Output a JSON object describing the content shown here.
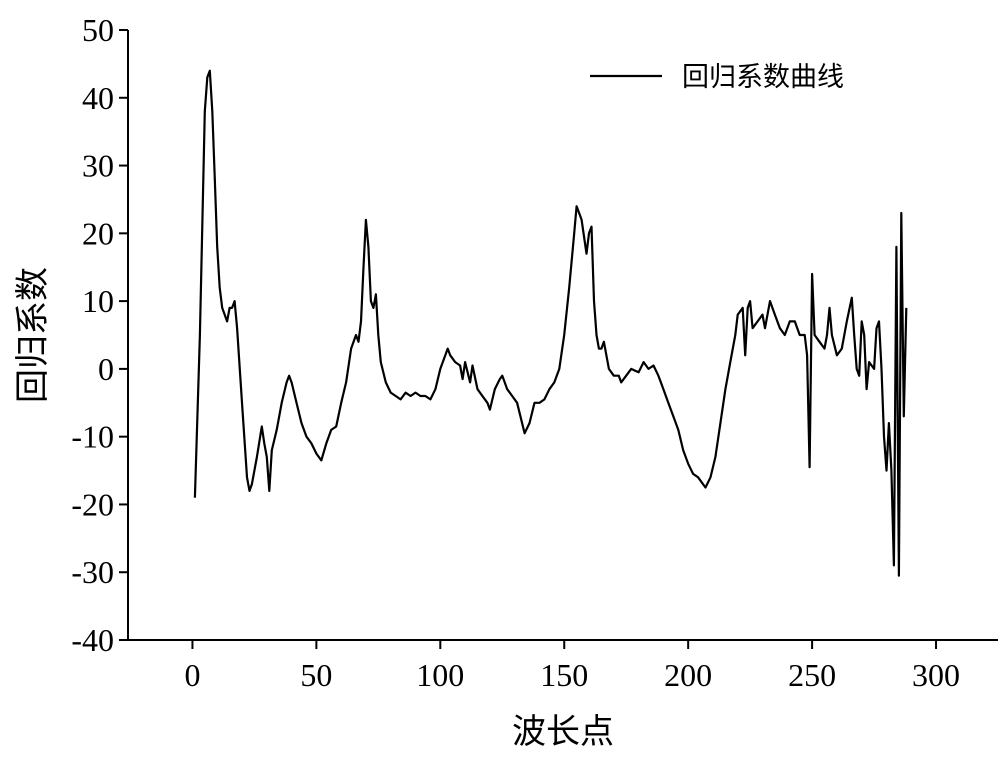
{
  "chart_data": {
    "type": "line",
    "xlabel": "波长点",
    "ylabel": "回归系数",
    "xlim": [
      -26,
      325
    ],
    "ylim": [
      -40,
      50
    ],
    "xticks": [
      0,
      50,
      100,
      150,
      200,
      250,
      300
    ],
    "yticks": [
      -40,
      -30,
      -20,
      -10,
      0,
      10,
      20,
      30,
      40,
      50
    ],
    "grid": false,
    "legend": "upper right",
    "x": [
      1,
      3,
      5,
      6,
      7,
      8,
      9,
      10,
      11,
      12,
      13,
      14,
      15,
      16,
      17,
      18,
      20,
      22,
      23,
      24,
      26,
      28,
      29,
      30,
      31,
      32,
      34,
      36,
      38,
      39,
      40,
      42,
      44,
      46,
      48,
      50,
      52,
      54,
      56,
      58,
      60,
      62,
      64,
      66,
      67,
      68,
      69,
      70,
      71,
      72,
      73,
      74,
      75,
      76,
      78,
      80,
      82,
      84,
      86,
      88,
      90,
      92,
      94,
      96,
      98,
      100,
      102,
      103,
      104,
      106,
      108,
      109,
      110,
      112,
      113,
      115,
      117,
      119,
      120,
      122,
      124,
      125,
      127,
      129,
      131,
      133,
      134,
      136,
      138,
      140,
      142,
      144,
      146,
      148,
      150,
      152,
      154,
      155,
      157,
      159,
      160,
      161,
      162,
      163,
      164,
      165,
      166,
      168,
      170,
      172,
      173,
      175,
      177,
      180,
      182,
      184,
      186,
      188,
      190,
      192,
      194,
      196,
      198,
      200,
      202,
      204,
      206,
      207,
      209,
      211,
      213,
      215,
      217,
      219,
      220,
      222,
      223,
      224,
      225,
      226,
      228,
      230,
      231,
      233,
      235,
      237,
      239,
      241,
      243,
      245,
      247,
      248,
      249,
      250,
      251,
      253,
      255,
      256,
      257,
      258,
      260,
      262,
      264,
      266,
      267,
      268,
      269,
      270,
      271,
      272,
      273,
      275,
      276,
      277,
      278,
      279,
      280,
      281,
      282,
      283,
      284,
      285,
      286,
      287,
      288
    ],
    "series": [
      {
        "name": "回归系数曲线",
        "color": "#000000",
        "values": [
          -19,
          5,
          38,
          43,
          44,
          38,
          28,
          18,
          12,
          9,
          8,
          7,
          9,
          9,
          10,
          6,
          -5,
          -16,
          -18,
          -17,
          -13,
          -8.5,
          -11,
          -13,
          -18,
          -12,
          -9,
          -5,
          -2,
          -1,
          -2,
          -5,
          -8,
          -10,
          -11,
          -12.5,
          -13.5,
          -11,
          -9,
          -8.5,
          -5,
          -2,
          3,
          5,
          4,
          7,
          15,
          22,
          18,
          10,
          9,
          11,
          5,
          1,
          -2,
          -3.5,
          -4,
          -4.5,
          -3.5,
          -4,
          -3.5,
          -4,
          -4,
          -4.5,
          -3,
          0,
          2,
          3,
          2,
          1,
          0.5,
          -1.5,
          1,
          -2,
          0.5,
          -3,
          -4,
          -5,
          -6,
          -3,
          -1.5,
          -1,
          -3,
          -4,
          -5,
          -8,
          -9.5,
          -8,
          -5,
          -5,
          -4.5,
          -3,
          -2,
          0,
          5,
          12,
          20,
          24,
          22,
          17,
          20,
          21,
          10,
          5,
          3,
          3,
          4,
          0,
          -1,
          -1,
          -2,
          -1,
          0,
          -0.5,
          1,
          0,
          0.5,
          -1,
          -3,
          -5,
          -7,
          -9,
          -12,
          -14,
          -15.5,
          -16,
          -17,
          -17.5,
          -16,
          -13,
          -8,
          -3,
          1,
          5,
          8,
          9,
          2,
          9,
          10,
          6,
          7,
          8,
          6,
          10,
          8,
          6,
          5,
          7,
          7,
          5,
          5,
          2,
          -14.5,
          14,
          5,
          4,
          3,
          5,
          9,
          5,
          2,
          3,
          7,
          10.5,
          5,
          0,
          -1,
          7,
          5,
          -3,
          1,
          0,
          6,
          7,
          0,
          -10,
          -15,
          -8,
          -15,
          -29,
          18,
          -30.5,
          23,
          -7,
          9
        ]
      }
    ]
  }
}
